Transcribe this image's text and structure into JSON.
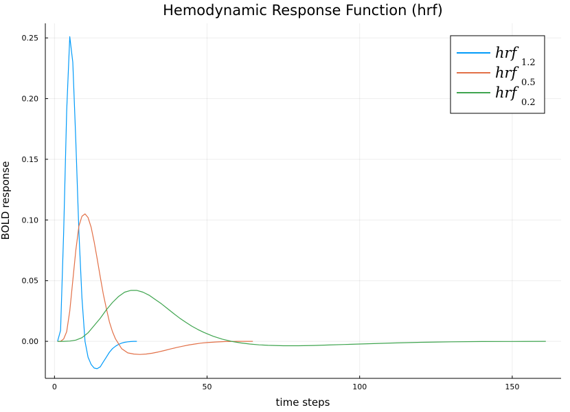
{
  "chart_data": {
    "type": "line",
    "title": "Hemodynamic Response Function (hrf)",
    "xlabel": "time steps",
    "ylabel": "BOLD response",
    "xlim": [
      -3,
      166
    ],
    "ylim": [
      -0.0305,
      0.262
    ],
    "xticks": [
      0,
      50,
      100,
      150
    ],
    "xtick_labels": [
      "0",
      "50",
      "100",
      "150"
    ],
    "yticks": [
      0.0,
      0.05,
      0.1,
      0.15,
      0.2,
      0.25
    ],
    "ytick_labels": [
      "0.00",
      "0.05",
      "0.10",
      "0.15",
      "0.20",
      "0.25"
    ],
    "grid": true,
    "legend_position": "top-right",
    "series": [
      {
        "name": "hrf",
        "subscript": "1.2",
        "color": "#009af9",
        "x": [
          1,
          2,
          3,
          4,
          5,
          6,
          7,
          8,
          9,
          10,
          11,
          12,
          13,
          14,
          15,
          16,
          17,
          18,
          19,
          20,
          21,
          22,
          23,
          24,
          25,
          26,
          27
        ],
        "y": [
          0.0,
          0.009,
          0.09,
          0.19,
          0.251,
          0.23,
          0.165,
          0.09,
          0.036,
          0.0,
          -0.013,
          -0.019,
          -0.022,
          -0.0225,
          -0.021,
          -0.017,
          -0.013,
          -0.009,
          -0.006,
          -0.004,
          -0.0025,
          -0.0015,
          -0.0008,
          -0.0004,
          -0.0002,
          0.0,
          0.0
        ]
      },
      {
        "name": "hrf",
        "subscript": "0.5",
        "color": "#e26f46",
        "x": [
          1,
          2,
          3,
          4,
          5,
          6,
          7,
          8,
          9,
          10,
          11,
          12,
          13,
          14,
          15,
          16,
          17,
          18,
          19,
          20,
          22,
          24,
          26,
          28,
          30,
          32,
          34,
          36,
          38,
          40,
          42,
          44,
          46,
          48,
          50,
          53,
          56,
          60,
          65
        ],
        "y": [
          0.0,
          0.0,
          0.002,
          0.008,
          0.025,
          0.05,
          0.075,
          0.095,
          0.103,
          0.105,
          0.102,
          0.094,
          0.082,
          0.068,
          0.053,
          0.039,
          0.027,
          0.016,
          0.008,
          0.002,
          -0.006,
          -0.0095,
          -0.0105,
          -0.0108,
          -0.0105,
          -0.0098,
          -0.0088,
          -0.0076,
          -0.0063,
          -0.0051,
          -0.004,
          -0.003,
          -0.0022,
          -0.0015,
          -0.001,
          -0.0005,
          -0.0002,
          0.0,
          0.0
        ]
      },
      {
        "name": "hrf",
        "subscript": "0.2",
        "color": "#3ea44e",
        "x": [
          1,
          3,
          5,
          7,
          9,
          11,
          13,
          15,
          17,
          19,
          21,
          23,
          25,
          27,
          29,
          31,
          33,
          35,
          37,
          39,
          41,
          43,
          45,
          47,
          49,
          52,
          55,
          58,
          61,
          64,
          67,
          70,
          75,
          80,
          85,
          90,
          95,
          100,
          110,
          120,
          130,
          140,
          150,
          161
        ],
        "y": [
          0.0,
          0.0,
          0.0002,
          0.001,
          0.003,
          0.007,
          0.013,
          0.019,
          0.026,
          0.032,
          0.037,
          0.0405,
          0.042,
          0.042,
          0.0405,
          0.038,
          0.0345,
          0.031,
          0.027,
          0.023,
          0.0192,
          0.0157,
          0.0125,
          0.0097,
          0.0073,
          0.0042,
          0.0018,
          0.0,
          -0.0013,
          -0.0022,
          -0.0029,
          -0.0033,
          -0.0036,
          -0.0036,
          -0.0034,
          -0.003,
          -0.0026,
          -0.0022,
          -0.0014,
          -0.0008,
          -0.0004,
          -0.0002,
          -0.0001,
          0.0
        ]
      }
    ]
  }
}
